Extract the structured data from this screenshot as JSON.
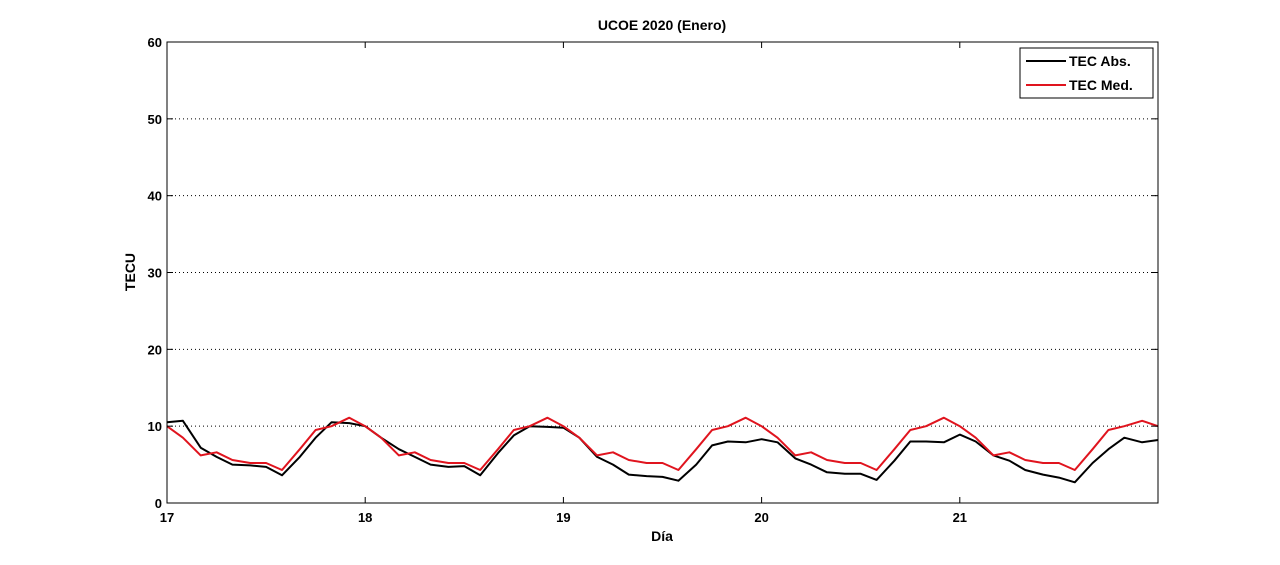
{
  "chart_data": {
    "type": "line",
    "title": "UCOE 2020 (Enero)",
    "xlabel": "Día",
    "ylabel": "TECU",
    "xlim": [
      17,
      22
    ],
    "ylim": [
      0,
      60
    ],
    "xticks": [
      17,
      18,
      19,
      20,
      21
    ],
    "yticks": [
      0,
      10,
      20,
      30,
      40,
      50,
      60
    ],
    "grid": "horizontal-dotted",
    "legend_position": "top-right",
    "series": [
      {
        "name": "TEC Abs.",
        "color": "#000000",
        "x": [
          17.0,
          17.08,
          17.17,
          17.25,
          17.33,
          17.42,
          17.5,
          17.58,
          17.67,
          17.75,
          17.83,
          17.92,
          18.0,
          18.08,
          18.17,
          18.25,
          18.33,
          18.42,
          18.5,
          18.58,
          18.67,
          18.75,
          18.83,
          18.92,
          19.0,
          19.08,
          19.17,
          19.25,
          19.33,
          19.42,
          19.5,
          19.58,
          19.67,
          19.75,
          19.83,
          19.92,
          20.0,
          20.08,
          20.17,
          20.25,
          20.33,
          20.42,
          20.5,
          20.58,
          20.67,
          20.75,
          20.83,
          20.92,
          21.0,
          21.08,
          21.17,
          21.25,
          21.33,
          21.42,
          21.5,
          21.58,
          21.67,
          21.75,
          21.83,
          21.92,
          22.0
        ],
        "y": [
          10.5,
          10.7,
          7.2,
          6.0,
          5.0,
          4.9,
          4.7,
          3.6,
          6.0,
          8.5,
          10.5,
          10.4,
          10.0,
          8.5,
          7.0,
          6.0,
          5.0,
          4.7,
          4.8,
          3.6,
          6.5,
          8.8,
          10.0,
          9.9,
          9.8,
          8.5,
          6.0,
          5.0,
          3.7,
          3.5,
          3.4,
          2.9,
          5.0,
          7.5,
          8.0,
          7.9,
          8.3,
          7.9,
          5.8,
          5.0,
          4.0,
          3.8,
          3.8,
          3.0,
          5.5,
          8.0,
          8.0,
          7.9,
          8.9,
          8.0,
          6.2,
          5.5,
          4.3,
          3.7,
          3.3,
          2.7,
          5.2,
          7.0,
          8.5,
          7.9,
          8.2
        ]
      },
      {
        "name": "TEC Med.",
        "color": "#e0141e",
        "x": [
          17.0,
          17.08,
          17.17,
          17.25,
          17.33,
          17.42,
          17.5,
          17.58,
          17.67,
          17.75,
          17.83,
          17.92,
          18.0,
          18.08,
          18.17,
          18.25,
          18.33,
          18.42,
          18.5,
          18.58,
          18.67,
          18.75,
          18.83,
          18.92,
          19.0,
          19.08,
          19.17,
          19.25,
          19.33,
          19.42,
          19.5,
          19.58,
          19.67,
          19.75,
          19.83,
          19.92,
          20.0,
          20.08,
          20.17,
          20.25,
          20.33,
          20.42,
          20.5,
          20.58,
          20.67,
          20.75,
          20.83,
          20.92,
          21.0,
          21.08,
          21.17,
          21.25,
          21.33,
          21.42,
          21.5,
          21.58,
          21.67,
          21.75,
          21.83,
          21.92,
          22.0
        ],
        "y": [
          10.0,
          8.5,
          6.2,
          6.6,
          5.6,
          5.2,
          5.2,
          4.3,
          7.0,
          9.5,
          10.0,
          11.1,
          10.0,
          8.5,
          6.2,
          6.6,
          5.6,
          5.2,
          5.2,
          4.3,
          7.0,
          9.5,
          10.0,
          11.1,
          10.0,
          8.5,
          6.2,
          6.6,
          5.6,
          5.2,
          5.2,
          4.3,
          7.0,
          9.5,
          10.0,
          11.1,
          10.0,
          8.5,
          6.2,
          6.6,
          5.6,
          5.2,
          5.2,
          4.3,
          7.0,
          9.5,
          10.0,
          11.1,
          10.0,
          8.5,
          6.2,
          6.6,
          5.6,
          5.2,
          5.2,
          4.3,
          7.0,
          9.5,
          10.0,
          10.7,
          10.0
        ]
      }
    ]
  }
}
